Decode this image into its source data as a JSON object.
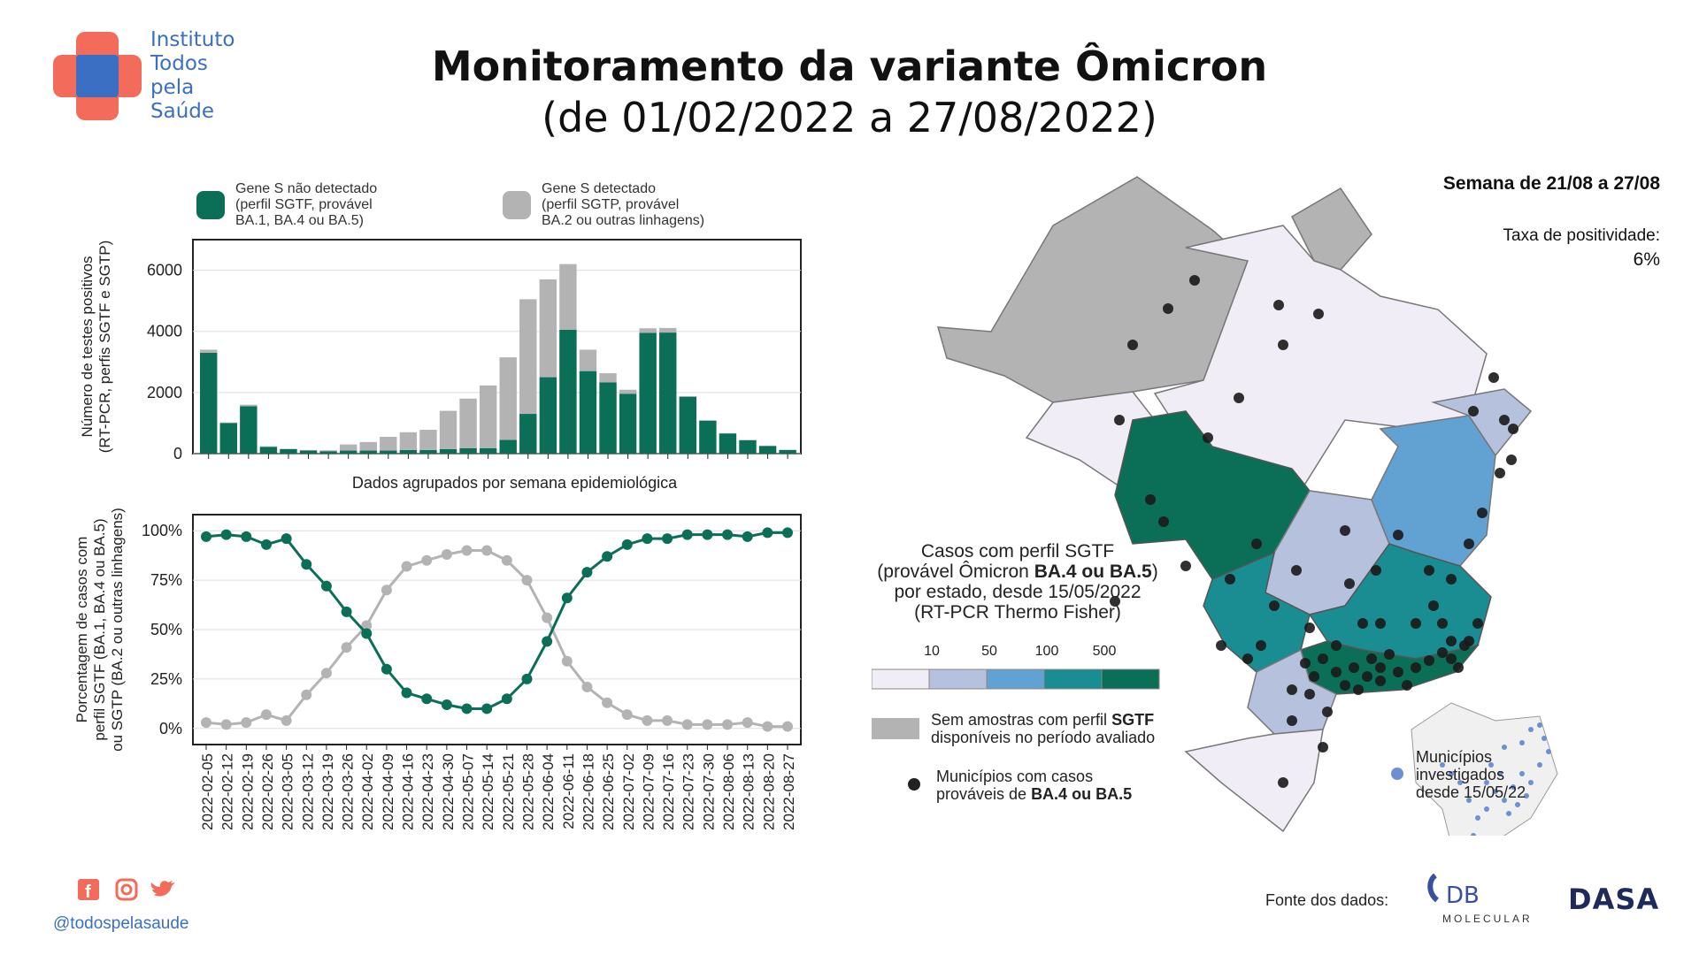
{
  "header": {
    "title": "Monitoramento da variante Ômicron",
    "subtitle": "(de 01/02/2022 a 27/08/2022)",
    "logo_text": "Instituto\nTodos\npela\nSaúde"
  },
  "colors": {
    "sgtf": "#0b6e57",
    "sgtp": "#b3b3b3",
    "logo_red": "#f26b5b",
    "logo_blue": "#3a6fc4",
    "map_bins": [
      "#f1edf6",
      "#b6c1de",
      "#62a2d2",
      "#1a8d93",
      "#0b6e57"
    ],
    "no_sample": "#b3b3b3"
  },
  "legend": {
    "sgtf": "Gene S não detectado\n(perfil SGTF, provável\nBA.1, BA.4 ou BA.5)",
    "sgtp": "Gene S detectado\n(perfil SGTP, provável\nBA.2 ou outras linhagens)"
  },
  "chart_data": [
    {
      "type": "bar",
      "stacked": true,
      "xlabel": "Dados agrupados por semana epidemiológica",
      "ylabel": "Número de testes positivos\n(RT-PCR, perfis SGTF e SGTP)",
      "ylim": [
        0,
        7000
      ],
      "yticks": [
        0,
        2000,
        4000,
        6000
      ],
      "grid": true,
      "categories": [
        "2022-02-05",
        "2022-02-12",
        "2022-02-19",
        "2022-02-26",
        "2022-03-05",
        "2022-03-12",
        "2022-03-19",
        "2022-03-26",
        "2022-04-02",
        "2022-04-09",
        "2022-04-16",
        "2022-04-23",
        "2022-04-30",
        "2022-05-07",
        "2022-05-14",
        "2022-05-21",
        "2022-05-28",
        "2022-06-04",
        "2022-06-11",
        "2022-06-18",
        "2022-06-25",
        "2022-07-02",
        "2022-07-09",
        "2022-07-16",
        "2022-07-23",
        "2022-07-30",
        "2022-08-06",
        "2022-08-13",
        "2022-08-20",
        "2022-08-27"
      ],
      "series": [
        {
          "name": "Gene S não detectado (perfil SGTF, provável BA.1, BA.4 ou BA.5)",
          "values": [
            3300,
            1000,
            1550,
            220,
            150,
            100,
            80,
            100,
            100,
            100,
            120,
            120,
            150,
            180,
            180,
            450,
            1300,
            2500,
            4050,
            2700,
            2330,
            1960,
            3950,
            3960,
            1860,
            1080,
            660,
            440,
            250,
            120
          ]
        },
        {
          "name": "Gene S detectado (perfil SGTP, provável BA.2 ou outras linhagens)",
          "values": [
            100,
            20,
            50,
            20,
            10,
            20,
            30,
            200,
            280,
            450,
            580,
            660,
            1250,
            1620,
            2050,
            2700,
            3750,
            3200,
            2150,
            700,
            300,
            130,
            150,
            150,
            20,
            10,
            10,
            10,
            10,
            10
          ]
        }
      ]
    },
    {
      "type": "line",
      "ylabel": "Porcentagem de casos com\nperfil SGTF (BA.1, BA.4 ou BA.5)\nou SGTP (BA.2 ou outras linhagens)",
      "ylim": [
        0,
        100
      ],
      "yticks": [
        "0%",
        "25%",
        "50%",
        "75%",
        "100%"
      ],
      "grid": true,
      "x": [
        "2022-02-05",
        "2022-02-12",
        "2022-02-19",
        "2022-02-26",
        "2022-03-05",
        "2022-03-12",
        "2022-03-19",
        "2022-03-26",
        "2022-04-02",
        "2022-04-09",
        "2022-04-16",
        "2022-04-23",
        "2022-04-30",
        "2022-05-07",
        "2022-05-14",
        "2022-05-21",
        "2022-05-28",
        "2022-06-04",
        "2022-06-11",
        "2022-06-18",
        "2022-06-25",
        "2022-07-02",
        "2022-07-09",
        "2022-07-16",
        "2022-07-23",
        "2022-07-30",
        "2022-08-06",
        "2022-08-13",
        "2022-08-20",
        "2022-08-27"
      ],
      "series": [
        {
          "values": [
            97,
            98,
            97,
            93,
            96,
            83,
            72,
            59,
            48,
            30,
            18,
            15,
            12,
            10,
            10,
            15,
            25,
            44,
            66,
            79,
            87,
            93,
            96,
            96,
            98,
            98,
            98,
            97,
            99,
            99
          ]
        },
        {
          "values": [
            3,
            2,
            3,
            7,
            4,
            17,
            28,
            41,
            52,
            70,
            82,
            85,
            88,
            90,
            90,
            85,
            75,
            56,
            34,
            21,
            13,
            7,
            4,
            4,
            2,
            2,
            2,
            3,
            1,
            1
          ]
        }
      ]
    }
  ],
  "map": {
    "week": "Semana de 21/08 a 27/08",
    "positivity_label": "Taxa de positividade:",
    "positivity_value": "6%",
    "legend_title_1": "Casos com perfil SGTF",
    "legend_title_2a": "(provável Ômicron ",
    "legend_title_2b": "BA.4 ou BA.5",
    "legend_title_2c": ")",
    "legend_title_3": "por estado, desde 15/05/2022",
    "legend_title_4": "(RT-PCR Thermo Fisher)",
    "bins": [
      "10",
      "50",
      "100",
      "500"
    ],
    "no_sample_1a": "Sem amostras com perfil ",
    "no_sample_1b": "SGTF",
    "no_sample_2": "disponíveis no período avaliado",
    "municipios_1": "Municípios com casos",
    "municipios_2a": "prováveis de ",
    "municipios_2b": "BA.4 ou BA.5",
    "inset_1": "Municípios",
    "inset_2": "investigados",
    "inset_3": "desde 15/05/22"
  },
  "footer": {
    "handle": "@todospelasaude",
    "fonte": "Fonte dos dados:",
    "db_logo": "DB",
    "db_sub": "MOLECULAR",
    "dasa_logo": "DASA",
    "social_icons": [
      "facebook-icon",
      "instagram-icon",
      "twitter-icon"
    ]
  }
}
